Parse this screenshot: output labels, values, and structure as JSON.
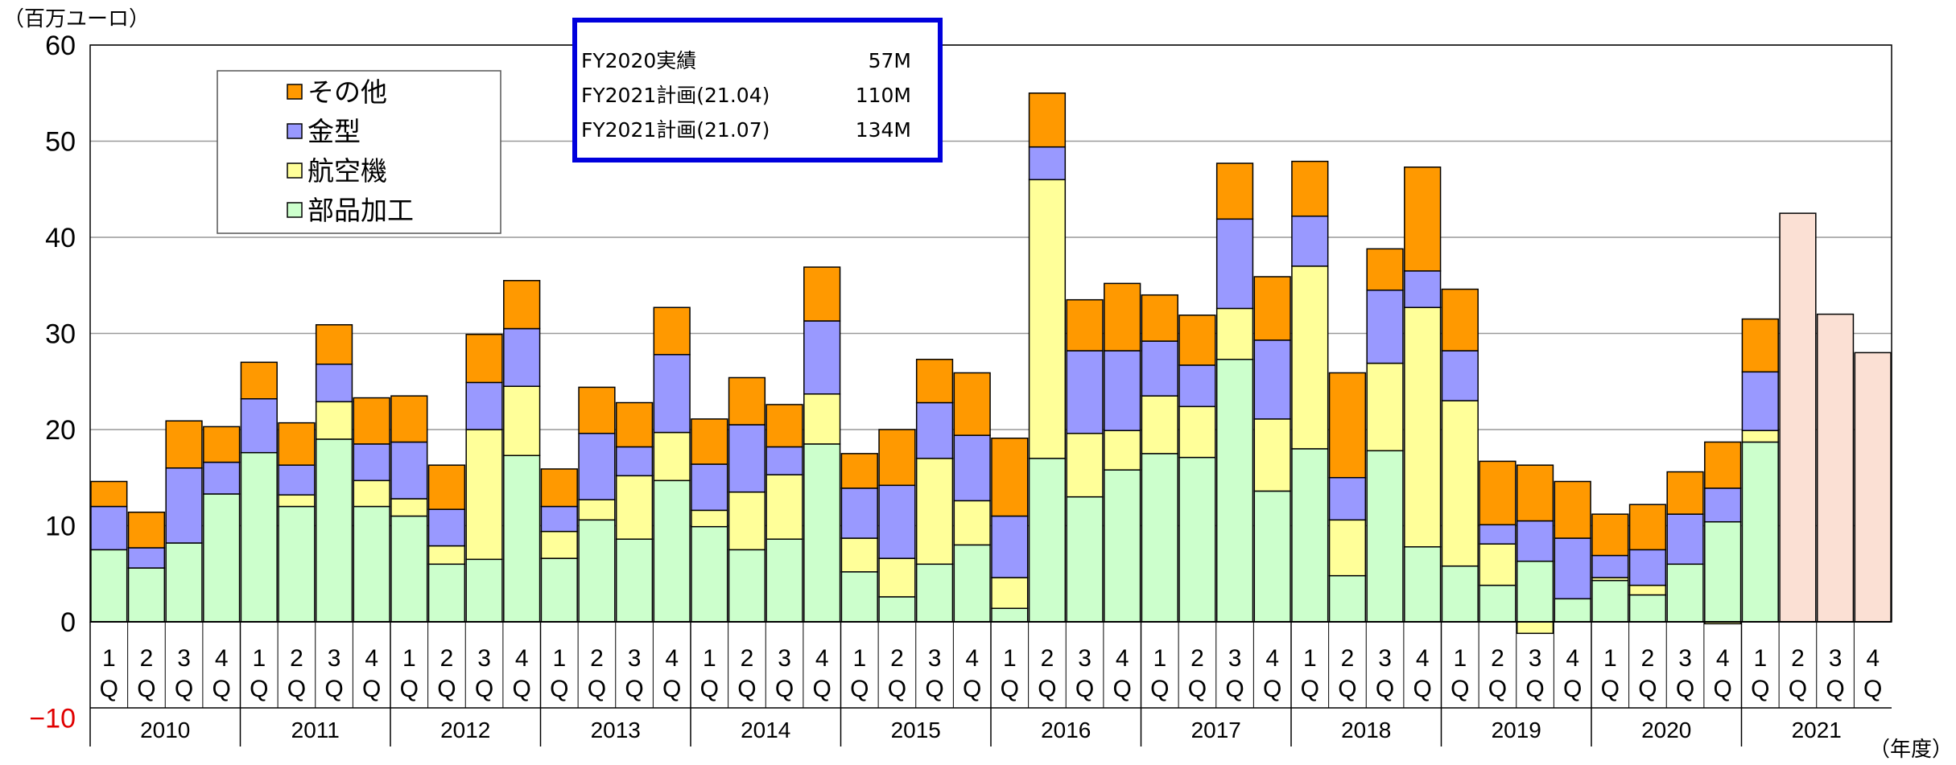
{
  "chart_data": {
    "type": "bar",
    "stacked": true,
    "y_unit_label": "（百万ユーロ）",
    "x_unit_label": "（年度）",
    "ylim": [
      -10,
      60
    ],
    "y_ticks": [
      -10,
      0,
      10,
      20,
      30,
      40,
      50,
      60
    ],
    "grid": true,
    "legend_position": "top-left",
    "quarter_labels": [
      "1",
      "2",
      "3",
      "4",
      "1",
      "2",
      "3",
      "4",
      "1",
      "2",
      "3",
      "4",
      "1",
      "2",
      "3",
      "4",
      "1",
      "2",
      "3",
      "4",
      "1",
      "2",
      "3",
      "4",
      "1",
      "2",
      "3",
      "4",
      "1",
      "2",
      "3",
      "4",
      "1",
      "2",
      "3",
      "4",
      "1",
      "2",
      "3",
      "4",
      "1",
      "2",
      "3",
      "4",
      "1",
      "2",
      "3",
      "4"
    ],
    "quarter_suffix": "Q",
    "years": [
      "2010",
      "2011",
      "2012",
      "2013",
      "2014",
      "2015",
      "2016",
      "2017",
      "2018",
      "2019",
      "2020",
      "2021"
    ],
    "series": [
      {
        "name": "部品加工",
        "color": "#ccffcc",
        "values": [
          7.5,
          5.6,
          8.2,
          13.3,
          17.6,
          12.0,
          19.0,
          12.0,
          11.0,
          6.0,
          6.5,
          17.3,
          6.6,
          10.6,
          8.6,
          14.7,
          9.9,
          7.5,
          8.6,
          18.5,
          5.2,
          2.6,
          6.0,
          8.0,
          1.4,
          17.0,
          13.0,
          15.8,
          17.5,
          17.1,
          27.3,
          13.6,
          18.0,
          4.8,
          17.8,
          7.8,
          5.8,
          3.8,
          6.3,
          2.4,
          4.3,
          2.8,
          6.0,
          10.4,
          18.7,
          null,
          null,
          null
        ]
      },
      {
        "name": "航空機",
        "color": "#ffff99",
        "values": [
          0,
          0,
          0,
          0,
          0,
          1.2,
          3.9,
          2.7,
          1.8,
          1.9,
          13.5,
          7.2,
          2.8,
          2.1,
          6.6,
          5.0,
          1.7,
          6.0,
          6.7,
          5.2,
          3.5,
          4.0,
          11.0,
          4.6,
          3.2,
          29.0,
          6.6,
          4.1,
          6.0,
          5.3,
          5.3,
          7.5,
          19.0,
          5.8,
          9.1,
          24.9,
          17.2,
          4.3,
          -1.2,
          0,
          0.3,
          1.0,
          0,
          -0.2,
          1.2,
          null,
          null,
          null
        ]
      },
      {
        "name": "金型",
        "color": "#9999ff",
        "values": [
          4.5,
          2.1,
          7.8,
          3.3,
          5.6,
          3.1,
          3.9,
          3.8,
          5.9,
          3.8,
          4.9,
          6.0,
          2.6,
          6.9,
          3.0,
          8.1,
          4.8,
          7.0,
          2.9,
          7.6,
          5.2,
          7.6,
          5.8,
          6.8,
          6.4,
          3.4,
          8.6,
          8.3,
          5.7,
          4.3,
          9.3,
          8.2,
          5.2,
          4.4,
          7.6,
          3.8,
          5.2,
          2.0,
          4.2,
          6.3,
          2.3,
          3.7,
          5.2,
          3.5,
          6.1,
          null,
          null,
          null
        ]
      },
      {
        "name": "その他",
        "color": "#ff9900",
        "values": [
          2.6,
          3.7,
          4.9,
          3.7,
          3.8,
          4.4,
          4.1,
          4.8,
          4.8,
          4.6,
          5.0,
          5.0,
          3.9,
          4.8,
          4.6,
          4.9,
          4.7,
          4.9,
          4.4,
          5.6,
          3.6,
          5.8,
          4.5,
          6.5,
          8.1,
          5.6,
          5.3,
          7.0,
          4.8,
          5.2,
          5.8,
          6.6,
          5.7,
          10.9,
          4.3,
          10.8,
          6.4,
          6.6,
          5.8,
          5.9,
          4.3,
          4.7,
          4.4,
          4.8,
          5.5,
          null,
          null,
          null
        ]
      },
      {
        "name": "計画",
        "color": "#fbe0d4",
        "values": [
          null,
          null,
          null,
          null,
          null,
          null,
          null,
          null,
          null,
          null,
          null,
          null,
          null,
          null,
          null,
          null,
          null,
          null,
          null,
          null,
          null,
          null,
          null,
          null,
          null,
          null,
          null,
          null,
          null,
          null,
          null,
          null,
          null,
          null,
          null,
          null,
          null,
          null,
          null,
          null,
          null,
          null,
          null,
          null,
          null,
          42.5,
          32.0,
          28.0
        ]
      }
    ],
    "legend_order": [
      "その他",
      "金型",
      "航空機",
      "部品加工"
    ],
    "info_box": [
      {
        "label": "FY2020実績",
        "value": "57M"
      },
      {
        "label": "FY2021計画(21.04)",
        "value": "110M"
      },
      {
        "label": "FY2021計画(21.07)",
        "value": "134M"
      }
    ],
    "colors": {
      "info_border": "#0000dd",
      "negative_tick": "#e00000"
    }
  }
}
